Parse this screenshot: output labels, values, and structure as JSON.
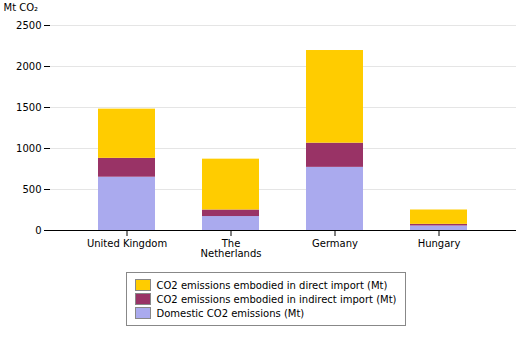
{
  "chart_data": {
    "type": "bar",
    "stacked": true,
    "categories": [
      "United Kingdom",
      "The\nNetherlands",
      "Germany",
      "Hungary"
    ],
    "series": [
      {
        "name": "Domestic CO2 emissions (Mt)",
        "color": "#aaaaee",
        "values": [
          650,
          170,
          770,
          55
        ]
      },
      {
        "name": "CO2 emissions embodied in indirect import (Mt)",
        "color": "#993366",
        "values": [
          230,
          80,
          295,
          20
        ]
      },
      {
        "name": "CO2 emissions embodied in direct import (Mt)",
        "color": "#ffcc00",
        "values": [
          600,
          620,
          1130,
          175
        ]
      }
    ],
    "ylabel": "Mt CO₂",
    "ylim": [
      0,
      2500
    ],
    "yticks": [
      0,
      500,
      1000,
      1500,
      2000,
      2500
    ],
    "grid": true,
    "legend": "bottom"
  }
}
